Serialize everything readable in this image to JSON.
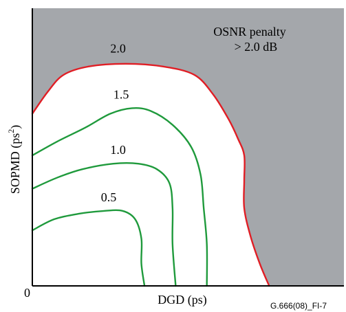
{
  "chart_data": {
    "type": "line",
    "xlabel": "DGD (ps)",
    "ylabel_main": "SOPMD (ps",
    "ylabel_sup": "2",
    "ylabel_close": ")",
    "origin_label": "0",
    "annotation": [
      "OSNR penalty",
      "> 2.0 dB"
    ],
    "figure_id": "G.666(08)_FI-7",
    "colors": {
      "background_region": "#a4a7ab",
      "region_2_0_boundary": "#e01e25",
      "contours": "#1f9a3c",
      "axes": "#000000"
    },
    "contours": [
      {
        "label": "2.0",
        "color": "#e01e25",
        "points": [
          [
            0.0,
            0.62
          ],
          [
            0.05,
            0.7
          ],
          [
            0.1,
            0.76
          ],
          [
            0.18,
            0.79
          ],
          [
            0.3,
            0.8
          ],
          [
            0.42,
            0.79
          ],
          [
            0.52,
            0.76
          ],
          [
            0.58,
            0.69
          ],
          [
            0.63,
            0.6
          ],
          [
            0.66,
            0.53
          ],
          [
            0.68,
            0.47
          ],
          [
            0.68,
            0.38
          ],
          [
            0.68,
            0.28
          ],
          [
            0.7,
            0.18
          ],
          [
            0.73,
            0.08
          ],
          [
            0.76,
            0.0
          ]
        ]
      },
      {
        "label": "1.5",
        "color": "#1f9a3c",
        "points": [
          [
            0.0,
            0.47
          ],
          [
            0.08,
            0.52
          ],
          [
            0.17,
            0.57
          ],
          [
            0.25,
            0.62
          ],
          [
            0.32,
            0.64
          ],
          [
            0.38,
            0.63
          ],
          [
            0.45,
            0.58
          ],
          [
            0.51,
            0.5
          ],
          [
            0.54,
            0.4
          ],
          [
            0.55,
            0.28
          ],
          [
            0.56,
            0.15
          ],
          [
            0.56,
            0.0
          ]
        ]
      },
      {
        "label": "1.0",
        "color": "#1f9a3c",
        "points": [
          [
            0.0,
            0.35
          ],
          [
            0.08,
            0.39
          ],
          [
            0.16,
            0.42
          ],
          [
            0.26,
            0.44
          ],
          [
            0.34,
            0.44
          ],
          [
            0.4,
            0.42
          ],
          [
            0.44,
            0.37
          ],
          [
            0.45,
            0.28
          ],
          [
            0.45,
            0.15
          ],
          [
            0.46,
            0.0
          ]
        ]
      },
      {
        "label": "0.5",
        "color": "#1f9a3c",
        "points": [
          [
            0.0,
            0.2
          ],
          [
            0.07,
            0.24
          ],
          [
            0.15,
            0.26
          ],
          [
            0.23,
            0.27
          ],
          [
            0.29,
            0.27
          ],
          [
            0.33,
            0.24
          ],
          [
            0.35,
            0.17
          ],
          [
            0.35,
            0.08
          ],
          [
            0.36,
            0.0
          ]
        ]
      }
    ],
    "contour_label_offsets": {
      "2.0": [
        0.275,
        0.84
      ],
      "1.5": [
        0.285,
        0.675
      ],
      "1.0": [
        0.275,
        0.475
      ],
      "0.5": [
        0.245,
        0.305
      ]
    }
  }
}
